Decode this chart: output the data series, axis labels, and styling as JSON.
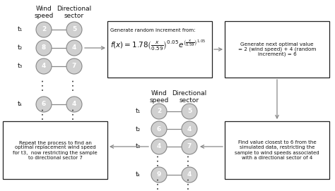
{
  "bg_color": "#ffffff",
  "top_nodes_left": [
    "2",
    "8",
    "4",
    "6"
  ],
  "top_nodes_right": [
    "5",
    "4",
    "7",
    "4"
  ],
  "bottom_nodes_left": [
    "2",
    "6",
    "4",
    "9"
  ],
  "bottom_nodes_right": [
    "5",
    "4",
    "7",
    "4"
  ],
  "top_time_labels": [
    "t₁",
    "t₂",
    "t₃",
    "tₖ"
  ],
  "bottom_time_labels": [
    "t₁",
    "t₂",
    "t₃",
    "tₖ"
  ],
  "node_fc": "#d0d0d0",
  "node_ec": "#888888",
  "node_text_color": "#ffffff",
  "box_ec": "#222222",
  "box_fc": "#ffffff",
  "arrow_color": "#888888",
  "text_color": "#111111"
}
